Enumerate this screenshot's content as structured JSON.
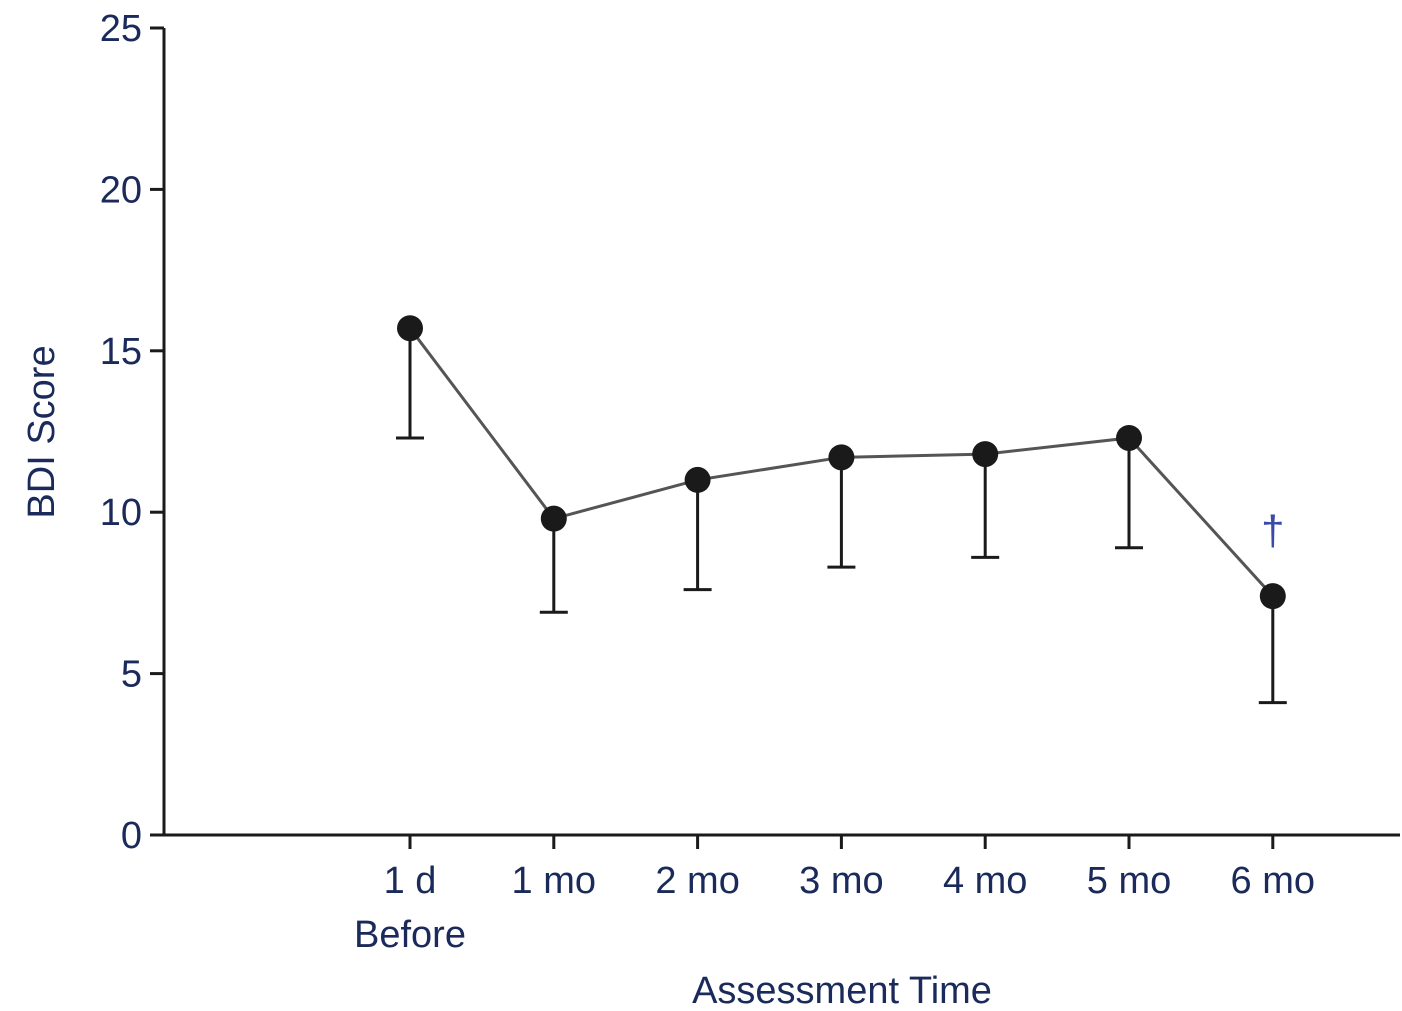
{
  "chart_data": {
    "type": "line",
    "categories": [
      "1 d\nBefore",
      "1 mo",
      "2 mo",
      "3 mo",
      "4 mo",
      "5 mo",
      "6 mo"
    ],
    "series": [
      {
        "values": [
          15.7,
          9.8,
          11.0,
          11.7,
          11.8,
          12.3,
          7.4
        ],
        "error_lower": [
          12.3,
          6.9,
          7.6,
          8.3,
          8.6,
          8.9,
          4.1
        ],
        "color": "#1a1a1a"
      }
    ],
    "xlabel": "Assessment Time",
    "ylabel": "BDI Score",
    "ylim": [
      0,
      25
    ],
    "yticks": [
      0,
      5,
      10,
      15,
      20,
      25
    ],
    "grid": false,
    "annotations": [
      {
        "category_index": 6,
        "text": "†",
        "color": "#3a4aa6"
      }
    ]
  }
}
